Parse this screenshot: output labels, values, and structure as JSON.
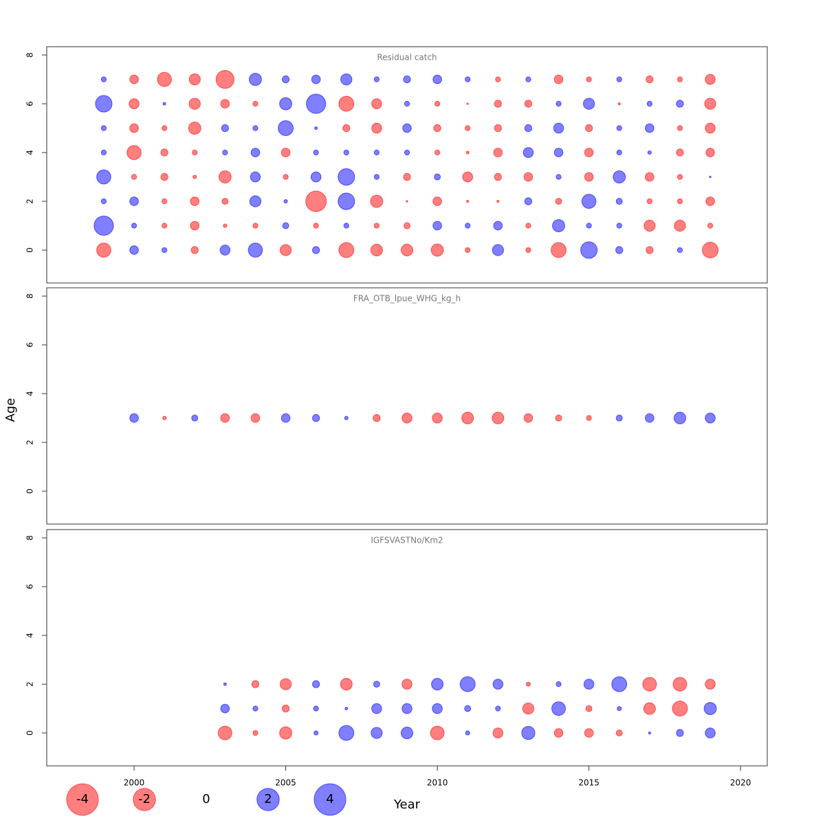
{
  "chart_data": [
    {
      "type": "bubble",
      "title": "Residual catch",
      "x": [
        1999,
        2000,
        2001,
        2002,
        2003,
        2004,
        2005,
        2006,
        2007,
        2008,
        2009,
        2010,
        2011,
        2012,
        2013,
        2014,
        2015,
        2016,
        2017,
        2018,
        2019
      ],
      "y": [
        0,
        1,
        2,
        3,
        4,
        5,
        6,
        7
      ],
      "values": [
        [
          -0.8,
          0.3,
          0.1,
          -0.2,
          0.4,
          0.8,
          -0.5,
          0.2,
          -0.9,
          -0.55,
          -0.55,
          -0.6,
          -0.1,
          0.5,
          -0.1,
          -0.9,
          1.1,
          0.2,
          -0.2,
          0.1,
          -1.0
        ],
        [
          1.5,
          0.1,
          -0.1,
          -0.3,
          -0.05,
          -0.1,
          0.15,
          -0.1,
          0.1,
          -0.1,
          -0.15,
          0.3,
          0.1,
          0.3,
          -0.1,
          0.6,
          0.1,
          0.1,
          -0.5,
          -0.5,
          -0.1
        ],
        [
          0.1,
          0.3,
          -0.1,
          -0.3,
          -0.15,
          0.5,
          0.05,
          -1.7,
          1.1,
          -0.6,
          -0.01,
          -0.3,
          -0.02,
          -0.02,
          0.2,
          -0.15,
          0.8,
          0.15,
          -0.1,
          -0.1,
          -0.3
        ],
        [
          0.8,
          -0.1,
          -0.2,
          -0.05,
          -0.6,
          0.4,
          -0.1,
          0.4,
          1.1,
          0.1,
          -0.2,
          0.15,
          -0.4,
          -0.2,
          -0.3,
          0.1,
          -0.3,
          0.6,
          -0.3,
          -0.1,
          0.01
        ],
        [
          0.1,
          -0.8,
          -0.2,
          -0.1,
          0.1,
          0.3,
          -0.3,
          0.1,
          0.1,
          0.1,
          0.1,
          -0.1,
          -0.03,
          -0.3,
          0.4,
          0.3,
          -0.3,
          0.1,
          0.05,
          -0.2,
          -0.3
        ],
        [
          0.1,
          -0.3,
          -0.1,
          -0.6,
          0.2,
          0.1,
          0.9,
          0.03,
          -0.2,
          -0.4,
          0.3,
          -0.2,
          -0.1,
          -0.2,
          0.2,
          0.4,
          -0.2,
          0.1,
          0.3,
          -0.1,
          -0.4
        ],
        [
          1.1,
          -0.4,
          0.03,
          -0.5,
          -0.3,
          -0.1,
          0.6,
          1.5,
          -0.9,
          -0.4,
          0.1,
          -0.1,
          -0.01,
          -0.2,
          -0.2,
          0.1,
          0.5,
          -0.02,
          0.1,
          0.2,
          -0.5
        ],
        [
          0.1,
          -0.3,
          -0.8,
          -0.5,
          -1.3,
          0.6,
          0.2,
          0.3,
          0.5,
          0.1,
          0.2,
          0.3,
          0.1,
          -0.1,
          0.1,
          -0.3,
          -0.1,
          0.1,
          -0.2,
          -0.1,
          -0.4
        ]
      ],
      "xlim": [
        1997.12,
        2020.88
      ],
      "ylim": [
        -1.35,
        8.34
      ],
      "yticks": [
        0,
        2,
        4,
        6,
        8
      ]
    },
    {
      "type": "bubble",
      "title": "FRA_OTB_lpue_WHG_kg_h",
      "x": [
        2000,
        2001,
        2002,
        2003,
        2004,
        2005,
        2006,
        2007,
        2008,
        2009,
        2010,
        2011,
        2012,
        2013,
        2014,
        2015,
        2016,
        2017,
        2018,
        2019
      ],
      "y": [
        3
      ],
      "values": [
        [
          0.3,
          -0.05,
          0.15,
          -0.3,
          -0.3,
          0.3,
          0.2,
          0.05,
          -0.2,
          -0.4,
          -0.4,
          -0.55,
          -0.55,
          -0.3,
          -0.15,
          -0.1,
          0.15,
          0.3,
          0.55,
          0.4
        ]
      ],
      "xlim": [
        1997.12,
        2020.88
      ],
      "ylim": [
        -1.35,
        8.34
      ],
      "yticks": [
        0,
        2,
        4,
        6,
        8
      ]
    },
    {
      "type": "bubble",
      "title": "IGFSVASTNo/Km2",
      "x": [
        2003,
        2004,
        2005,
        2006,
        2007,
        2008,
        2009,
        2010,
        2011,
        2012,
        2013,
        2014,
        2015,
        2016,
        2017,
        2018,
        2019
      ],
      "y": [
        0,
        1,
        2
      ],
      "values": [
        [
          -0.75,
          -0.1,
          -0.6,
          0.07,
          0.9,
          0.5,
          0.55,
          -0.75,
          0.07,
          -0.4,
          0.7,
          -0.3,
          -0.3,
          -0.15,
          0.02,
          0.2,
          0.4
        ],
        [
          0.3,
          0.1,
          -0.2,
          0.1,
          0.03,
          0.4,
          0.4,
          0.4,
          0.15,
          0.1,
          -0.5,
          0.75,
          -0.15,
          0.07,
          -0.55,
          -0.9,
          0.6
        ],
        [
          0.03,
          -0.2,
          -0.5,
          0.2,
          -0.55,
          0.15,
          -0.4,
          0.55,
          0.9,
          0.4,
          -0.07,
          0.1,
          0.4,
          0.9,
          -0.75,
          -0.75,
          -0.4
        ]
      ],
      "xlim": [
        1997.12,
        2020.88
      ],
      "ylim": [
        -1.35,
        8.34
      ],
      "yticks": [
        0,
        2,
        4,
        6,
        8
      ],
      "xticks": [
        2000,
        2005,
        2010,
        2015,
        2020
      ]
    }
  ],
  "xlabel": "Year",
  "ylabel": "Age",
  "positive_color": "#0000ff",
  "negative_color": "#ff0000",
  "legend": {
    "values": [
      -4,
      -2,
      0,
      2,
      4
    ]
  }
}
